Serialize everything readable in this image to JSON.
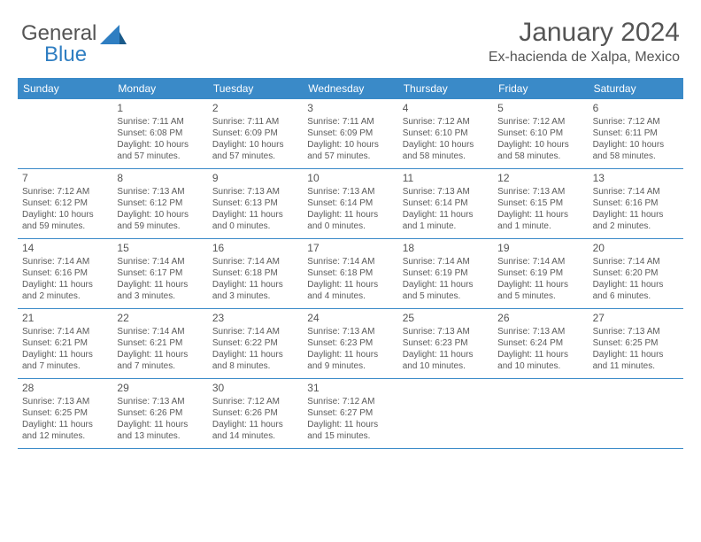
{
  "logo": {
    "text1": "General",
    "text2": "Blue"
  },
  "title": "January 2024",
  "location": "Ex-hacienda de Xalpa, Mexico",
  "colors": {
    "accent": "#3a8ac8",
    "text": "#5a5a5a",
    "bg": "#ffffff"
  },
  "day_names": [
    "Sunday",
    "Monday",
    "Tuesday",
    "Wednesday",
    "Thursday",
    "Friday",
    "Saturday"
  ],
  "weeks": [
    [
      null,
      {
        "n": "1",
        "sr": "Sunrise: 7:11 AM",
        "ss": "Sunset: 6:08 PM",
        "d1": "Daylight: 10 hours",
        "d2": "and 57 minutes."
      },
      {
        "n": "2",
        "sr": "Sunrise: 7:11 AM",
        "ss": "Sunset: 6:09 PM",
        "d1": "Daylight: 10 hours",
        "d2": "and 57 minutes."
      },
      {
        "n": "3",
        "sr": "Sunrise: 7:11 AM",
        "ss": "Sunset: 6:09 PM",
        "d1": "Daylight: 10 hours",
        "d2": "and 57 minutes."
      },
      {
        "n": "4",
        "sr": "Sunrise: 7:12 AM",
        "ss": "Sunset: 6:10 PM",
        "d1": "Daylight: 10 hours",
        "d2": "and 58 minutes."
      },
      {
        "n": "5",
        "sr": "Sunrise: 7:12 AM",
        "ss": "Sunset: 6:10 PM",
        "d1": "Daylight: 10 hours",
        "d2": "and 58 minutes."
      },
      {
        "n": "6",
        "sr": "Sunrise: 7:12 AM",
        "ss": "Sunset: 6:11 PM",
        "d1": "Daylight: 10 hours",
        "d2": "and 58 minutes."
      }
    ],
    [
      {
        "n": "7",
        "sr": "Sunrise: 7:12 AM",
        "ss": "Sunset: 6:12 PM",
        "d1": "Daylight: 10 hours",
        "d2": "and 59 minutes."
      },
      {
        "n": "8",
        "sr": "Sunrise: 7:13 AM",
        "ss": "Sunset: 6:12 PM",
        "d1": "Daylight: 10 hours",
        "d2": "and 59 minutes."
      },
      {
        "n": "9",
        "sr": "Sunrise: 7:13 AM",
        "ss": "Sunset: 6:13 PM",
        "d1": "Daylight: 11 hours",
        "d2": "and 0 minutes."
      },
      {
        "n": "10",
        "sr": "Sunrise: 7:13 AM",
        "ss": "Sunset: 6:14 PM",
        "d1": "Daylight: 11 hours",
        "d2": "and 0 minutes."
      },
      {
        "n": "11",
        "sr": "Sunrise: 7:13 AM",
        "ss": "Sunset: 6:14 PM",
        "d1": "Daylight: 11 hours",
        "d2": "and 1 minute."
      },
      {
        "n": "12",
        "sr": "Sunrise: 7:13 AM",
        "ss": "Sunset: 6:15 PM",
        "d1": "Daylight: 11 hours",
        "d2": "and 1 minute."
      },
      {
        "n": "13",
        "sr": "Sunrise: 7:14 AM",
        "ss": "Sunset: 6:16 PM",
        "d1": "Daylight: 11 hours",
        "d2": "and 2 minutes."
      }
    ],
    [
      {
        "n": "14",
        "sr": "Sunrise: 7:14 AM",
        "ss": "Sunset: 6:16 PM",
        "d1": "Daylight: 11 hours",
        "d2": "and 2 minutes."
      },
      {
        "n": "15",
        "sr": "Sunrise: 7:14 AM",
        "ss": "Sunset: 6:17 PM",
        "d1": "Daylight: 11 hours",
        "d2": "and 3 minutes."
      },
      {
        "n": "16",
        "sr": "Sunrise: 7:14 AM",
        "ss": "Sunset: 6:18 PM",
        "d1": "Daylight: 11 hours",
        "d2": "and 3 minutes."
      },
      {
        "n": "17",
        "sr": "Sunrise: 7:14 AM",
        "ss": "Sunset: 6:18 PM",
        "d1": "Daylight: 11 hours",
        "d2": "and 4 minutes."
      },
      {
        "n": "18",
        "sr": "Sunrise: 7:14 AM",
        "ss": "Sunset: 6:19 PM",
        "d1": "Daylight: 11 hours",
        "d2": "and 5 minutes."
      },
      {
        "n": "19",
        "sr": "Sunrise: 7:14 AM",
        "ss": "Sunset: 6:19 PM",
        "d1": "Daylight: 11 hours",
        "d2": "and 5 minutes."
      },
      {
        "n": "20",
        "sr": "Sunrise: 7:14 AM",
        "ss": "Sunset: 6:20 PM",
        "d1": "Daylight: 11 hours",
        "d2": "and 6 minutes."
      }
    ],
    [
      {
        "n": "21",
        "sr": "Sunrise: 7:14 AM",
        "ss": "Sunset: 6:21 PM",
        "d1": "Daylight: 11 hours",
        "d2": "and 7 minutes."
      },
      {
        "n": "22",
        "sr": "Sunrise: 7:14 AM",
        "ss": "Sunset: 6:21 PM",
        "d1": "Daylight: 11 hours",
        "d2": "and 7 minutes."
      },
      {
        "n": "23",
        "sr": "Sunrise: 7:14 AM",
        "ss": "Sunset: 6:22 PM",
        "d1": "Daylight: 11 hours",
        "d2": "and 8 minutes."
      },
      {
        "n": "24",
        "sr": "Sunrise: 7:13 AM",
        "ss": "Sunset: 6:23 PM",
        "d1": "Daylight: 11 hours",
        "d2": "and 9 minutes."
      },
      {
        "n": "25",
        "sr": "Sunrise: 7:13 AM",
        "ss": "Sunset: 6:23 PM",
        "d1": "Daylight: 11 hours",
        "d2": "and 10 minutes."
      },
      {
        "n": "26",
        "sr": "Sunrise: 7:13 AM",
        "ss": "Sunset: 6:24 PM",
        "d1": "Daylight: 11 hours",
        "d2": "and 10 minutes."
      },
      {
        "n": "27",
        "sr": "Sunrise: 7:13 AM",
        "ss": "Sunset: 6:25 PM",
        "d1": "Daylight: 11 hours",
        "d2": "and 11 minutes."
      }
    ],
    [
      {
        "n": "28",
        "sr": "Sunrise: 7:13 AM",
        "ss": "Sunset: 6:25 PM",
        "d1": "Daylight: 11 hours",
        "d2": "and 12 minutes."
      },
      {
        "n": "29",
        "sr": "Sunrise: 7:13 AM",
        "ss": "Sunset: 6:26 PM",
        "d1": "Daylight: 11 hours",
        "d2": "and 13 minutes."
      },
      {
        "n": "30",
        "sr": "Sunrise: 7:12 AM",
        "ss": "Sunset: 6:26 PM",
        "d1": "Daylight: 11 hours",
        "d2": "and 14 minutes."
      },
      {
        "n": "31",
        "sr": "Sunrise: 7:12 AM",
        "ss": "Sunset: 6:27 PM",
        "d1": "Daylight: 11 hours",
        "d2": "and 15 minutes."
      },
      null,
      null,
      null
    ]
  ]
}
